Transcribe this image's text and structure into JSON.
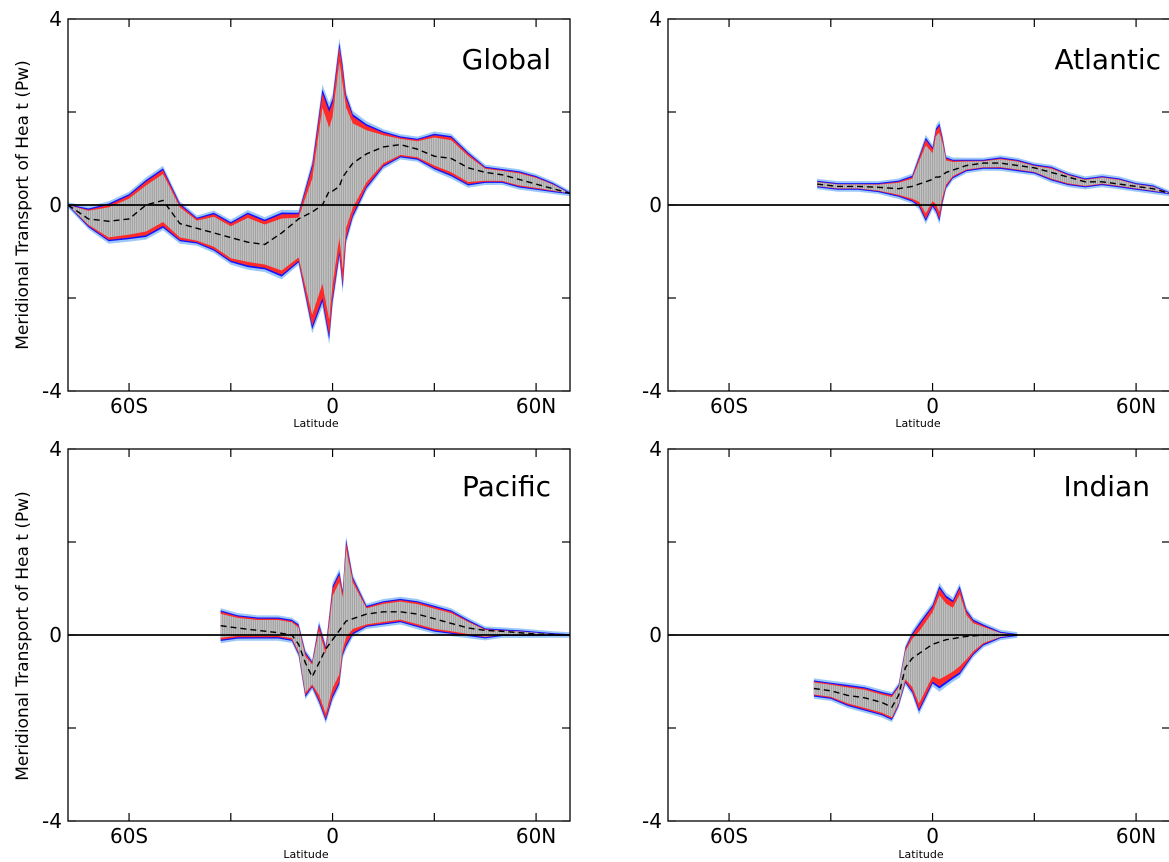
{
  "figure": {
    "ylabel": "Meridional Transport of Hea t (Pw)"
  },
  "colors": {
    "spread_fill": "#c4c4c4",
    "hatch": "#8f8f8f",
    "inner_band": "#ff2a2a",
    "mid_band": "#1414ff",
    "outer_band": "#9cc8f8",
    "mean_line": "#000000"
  },
  "chart_data": [
    {
      "type": "area",
      "title": "Global",
      "xlabel": "Latitude",
      "ylabel": "Meridional Transport of Hea t (Pw)",
      "xlim": [
        -78,
        70
      ],
      "ylim": [
        -4,
        4
      ],
      "xticks": [
        -60,
        0,
        60
      ],
      "xtick_labels": [
        "60S",
        "0",
        "60N"
      ],
      "yticks": [
        -4,
        0,
        4
      ],
      "ytick_labels": [
        "-4",
        "0",
        "4"
      ],
      "zero_line": true,
      "grid": false,
      "x": [
        -78,
        -72,
        -66,
        -60,
        -55,
        -50,
        -45,
        -40,
        -35,
        -30,
        -25,
        -20,
        -15,
        -10,
        -6,
        -3,
        -1,
        0,
        2,
        3,
        4,
        6,
        10,
        15,
        20,
        25,
        30,
        35,
        40,
        45,
        50,
        55,
        60,
        65,
        70
      ],
      "mean": [
        0.0,
        -0.3,
        -0.35,
        -0.3,
        0.0,
        0.1,
        -0.4,
        -0.5,
        -0.6,
        -0.7,
        -0.8,
        -0.85,
        -0.6,
        -0.3,
        -0.15,
        0.0,
        0.3,
        0.3,
        0.4,
        0.6,
        0.7,
        0.9,
        1.1,
        1.25,
        1.3,
        1.2,
        1.05,
        1.0,
        0.8,
        0.7,
        0.65,
        0.55,
        0.45,
        0.35,
        0.25
      ],
      "upper": [
        0.0,
        -0.1,
        0.0,
        0.2,
        0.5,
        0.75,
        0.0,
        -0.3,
        -0.2,
        -0.4,
        -0.2,
        -0.35,
        -0.2,
        -0.2,
        0.8,
        2.4,
        2.0,
        2.2,
        3.4,
        2.9,
        2.3,
        1.9,
        1.7,
        1.55,
        1.45,
        1.4,
        1.5,
        1.45,
        1.1,
        0.8,
        0.75,
        0.7,
        0.6,
        0.45,
        0.25
      ],
      "lower": [
        0.0,
        -0.45,
        -0.75,
        -0.7,
        -0.65,
        -0.45,
        -0.75,
        -0.8,
        -0.95,
        -1.2,
        -1.3,
        -1.35,
        -1.5,
        -1.2,
        -2.6,
        -2.0,
        -2.8,
        -2.0,
        -1.0,
        -1.7,
        -0.7,
        -0.2,
        0.4,
        0.85,
        1.05,
        1.0,
        0.8,
        0.65,
        0.45,
        0.5,
        0.5,
        0.4,
        0.35,
        0.3,
        0.25
      ]
    },
    {
      "type": "area",
      "title": "Atlantic",
      "xlabel": "Latitude",
      "ylabel": "",
      "xlim": [
        -78,
        70
      ],
      "ylim": [
        -4,
        4
      ],
      "xticks": [
        -60,
        0,
        60
      ],
      "xtick_labels": [
        "60S",
        "0",
        "60N"
      ],
      "yticks": [
        -4,
        0,
        4
      ],
      "ytick_labels": [
        "-4",
        "0",
        "4"
      ],
      "zero_line": true,
      "grid": false,
      "x": [
        -34,
        -28,
        -22,
        -16,
        -10,
        -6,
        -4,
        -2,
        0,
        1,
        2,
        3,
        4,
        6,
        10,
        15,
        20,
        25,
        30,
        35,
        40,
        45,
        50,
        55,
        60,
        65,
        70
      ],
      "mean": [
        0.45,
        0.4,
        0.4,
        0.38,
        0.35,
        0.4,
        0.45,
        0.5,
        0.55,
        0.6,
        0.6,
        0.65,
        0.7,
        0.75,
        0.85,
        0.9,
        0.9,
        0.85,
        0.8,
        0.7,
        0.6,
        0.5,
        0.5,
        0.45,
        0.4,
        0.35,
        0.25
      ],
      "upper": [
        0.5,
        0.45,
        0.45,
        0.45,
        0.5,
        0.6,
        1.0,
        1.4,
        1.2,
        1.6,
        1.7,
        1.4,
        1.0,
        0.95,
        0.95,
        0.95,
        1.0,
        0.95,
        0.85,
        0.8,
        0.65,
        0.55,
        0.6,
        0.55,
        0.45,
        0.4,
        0.25
      ],
      "lower": [
        0.4,
        0.35,
        0.35,
        0.3,
        0.2,
        0.1,
        0.0,
        -0.3,
        0.0,
        -0.1,
        -0.3,
        0.1,
        0.4,
        0.6,
        0.75,
        0.8,
        0.8,
        0.75,
        0.7,
        0.55,
        0.45,
        0.4,
        0.45,
        0.4,
        0.35,
        0.3,
        0.25
      ]
    },
    {
      "type": "area",
      "title": "Pacific",
      "xlabel": "Latitude",
      "ylabel": "Meridional Transport of Hea t (Pw)",
      "xlim": [
        -78,
        70
      ],
      "ylim": [
        -4,
        4
      ],
      "xticks": [
        -60,
        0,
        60
      ],
      "xtick_labels": [
        "60S",
        "0",
        "60N"
      ],
      "yticks": [
        -4,
        0,
        4
      ],
      "ytick_labels": [
        "-4",
        "0",
        "4"
      ],
      "zero_line": true,
      "grid": false,
      "x": [
        -33,
        -28,
        -22,
        -16,
        -12,
        -10,
        -8,
        -6,
        -4,
        -2,
        0,
        2,
        3,
        4,
        6,
        10,
        15,
        20,
        25,
        30,
        35,
        40,
        45,
        50,
        55,
        60,
        65,
        70
      ],
      "mean": [
        0.2,
        0.15,
        0.1,
        0.05,
        0.0,
        -0.2,
        -0.6,
        -0.9,
        -0.6,
        -0.3,
        -0.1,
        0.1,
        0.2,
        0.3,
        0.35,
        0.45,
        0.5,
        0.5,
        0.45,
        0.35,
        0.25,
        0.15,
        0.1,
        0.08,
        0.05,
        0.02,
        0.01,
        0.0
      ],
      "upper": [
        0.5,
        0.4,
        0.35,
        0.35,
        0.3,
        0.2,
        -0.4,
        -0.6,
        0.2,
        -0.3,
        1.0,
        1.3,
        0.9,
        2.0,
        1.2,
        0.6,
        0.7,
        0.75,
        0.7,
        0.6,
        0.5,
        0.3,
        0.12,
        0.1,
        0.08,
        0.05,
        0.02,
        0.0
      ],
      "lower": [
        -0.1,
        -0.05,
        -0.05,
        -0.05,
        -0.1,
        -0.4,
        -1.3,
        -1.1,
        -1.4,
        -1.8,
        -1.3,
        -1.0,
        -0.4,
        -0.2,
        0.05,
        0.2,
        0.25,
        0.3,
        0.2,
        0.1,
        0.05,
        0.0,
        -0.05,
        0.0,
        0.0,
        0.0,
        0.0,
        0.0
      ]
    },
    {
      "type": "area",
      "title": "Indian",
      "xlabel": "Latitude",
      "ylabel": "",
      "xlim": [
        -78,
        70
      ],
      "ylim": [
        -4,
        4
      ],
      "xticks": [
        -60,
        0,
        60
      ],
      "xtick_labels": [
        "60S",
        "0",
        "60N"
      ],
      "yticks": [
        -4,
        0,
        4
      ],
      "ytick_labels": [
        "-4",
        "0",
        "4"
      ],
      "zero_line": true,
      "grid": false,
      "x": [
        -35,
        -30,
        -25,
        -20,
        -15,
        -12,
        -10,
        -8,
        -6,
        -4,
        -2,
        0,
        2,
        4,
        6,
        8,
        10,
        12,
        15,
        20,
        25
      ],
      "mean": [
        -1.15,
        -1.2,
        -1.3,
        -1.35,
        -1.45,
        -1.55,
        -1.3,
        -0.7,
        -0.5,
        -0.4,
        -0.3,
        -0.2,
        -0.15,
        -0.1,
        -0.08,
        -0.05,
        -0.03,
        -0.02,
        0.0,
        0.0,
        0.0
      ],
      "upper": [
        -1.0,
        -1.05,
        -1.1,
        -1.15,
        -1.25,
        -1.3,
        -1.1,
        -0.3,
        0.0,
        0.2,
        0.4,
        0.6,
        1.0,
        0.8,
        0.7,
        1.0,
        0.5,
        0.3,
        0.2,
        0.05,
        0.0
      ],
      "lower": [
        -1.3,
        -1.35,
        -1.5,
        -1.6,
        -1.7,
        -1.8,
        -1.5,
        -1.0,
        -1.2,
        -1.6,
        -1.3,
        -1.0,
        -1.1,
        -1.0,
        -0.9,
        -0.8,
        -0.6,
        -0.4,
        -0.2,
        -0.05,
        0.0
      ]
    }
  ]
}
